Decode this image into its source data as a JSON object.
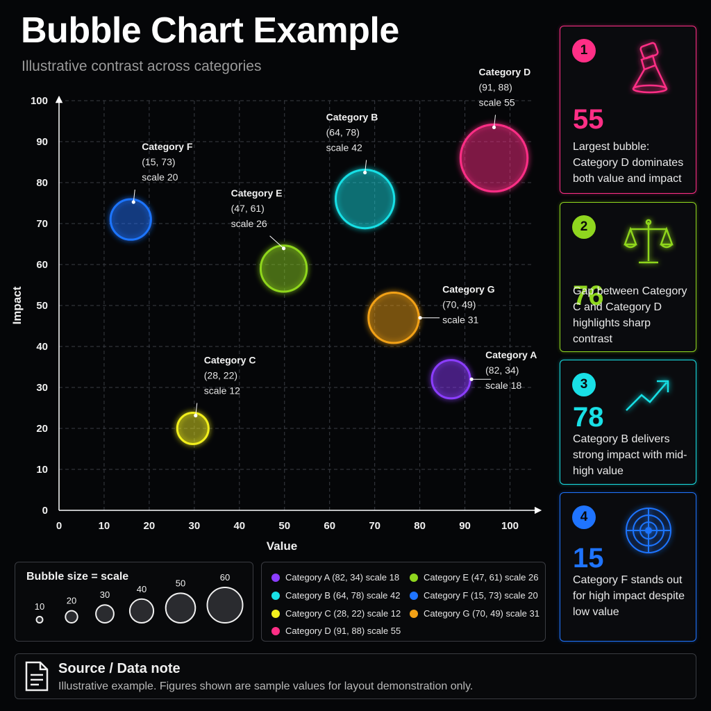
{
  "header": {
    "title": "Bubble Chart Example",
    "subtitle": "Illustrative contrast across categories"
  },
  "chart_data": {
    "type": "scatter",
    "title": "Bubble Chart Example",
    "subtitle": "Illustrative contrast across categories",
    "xlabel": "Value",
    "ylabel": "Impact",
    "xlim": [
      0,
      105
    ],
    "ylim": [
      0,
      100
    ],
    "xticks": [
      "0",
      "10",
      "20",
      "30",
      "40",
      "50",
      "60",
      "70",
      "80",
      "90",
      "100"
    ],
    "yticks": [
      "0",
      "10",
      "20",
      "30",
      "40",
      "50",
      "60",
      "70",
      "80",
      "90",
      "100"
    ],
    "grid": true,
    "points": [
      {
        "name": "Category A",
        "x": 82,
        "y": 34,
        "scale": 18,
        "color": "#8b3dff",
        "label_coords": "(82, 34)",
        "label_scale": "scale 18"
      },
      {
        "name": "Category B",
        "x": 64,
        "y": 78,
        "scale": 42,
        "color": "#19e0e6",
        "label_coords": "(64, 78)",
        "label_scale": "scale 42"
      },
      {
        "name": "Category C",
        "x": 28,
        "y": 22,
        "scale": 12,
        "color": "#f2ef1e",
        "label_coords": "(28, 22)",
        "label_scale": "scale 12"
      },
      {
        "name": "Category D",
        "x": 91,
        "y": 88,
        "scale": 55,
        "color": "#ff2f86",
        "label_coords": "(91, 88)",
        "label_scale": "scale 55"
      },
      {
        "name": "Category E",
        "x": 47,
        "y": 61,
        "scale": 26,
        "color": "#8fd61f",
        "label_coords": "(47, 61)",
        "label_scale": "scale 26"
      },
      {
        "name": "Category F",
        "x": 15,
        "y": 73,
        "scale": 20,
        "color": "#1f74ff",
        "label_coords": "(15, 73)",
        "label_scale": "scale 20"
      },
      {
        "name": "Category G",
        "x": 70,
        "y": 49,
        "scale": 31,
        "color": "#f2a116",
        "label_coords": "(70, 49)",
        "label_scale": "scale 31"
      }
    ]
  },
  "insights": [
    {
      "number": "1",
      "value": "55",
      "text": "Largest bubble: Category D dominates both value and impact",
      "color": "#ff2f86",
      "icon": "spotlight-icon"
    },
    {
      "number": "2",
      "value": "76",
      "text": "Gap between Category C and Category D highlights sharp contrast",
      "color": "#8fd61f",
      "icon": "balance-scale-icon"
    },
    {
      "number": "3",
      "value": "78",
      "text": "Category B delivers strong impact with mid-high value",
      "color": "#19e0e6",
      "icon": "trend-up-icon"
    },
    {
      "number": "4",
      "value": "15",
      "text": "Category F stands out for high impact despite low value",
      "color": "#1f74ff",
      "icon": "radar-icon"
    }
  ],
  "size_legend": {
    "title": "Bubble size = scale",
    "sizes": [
      "10",
      "20",
      "30",
      "40",
      "50",
      "60"
    ]
  },
  "series_legend": {
    "items": [
      "Category A (82, 34) scale 18",
      "Category B (64, 78) scale 42",
      "Category C (28, 22) scale 12",
      "Category D (91, 88) scale 55",
      "Category E (47, 61) scale 26",
      "Category F (15, 73) scale 20",
      "Category G (70, 49) scale 31"
    ]
  },
  "source": {
    "title": "Source / Data note",
    "text": "Illustrative example. Figures shown are sample values for layout demonstration only.",
    "icon": "document-icon"
  }
}
